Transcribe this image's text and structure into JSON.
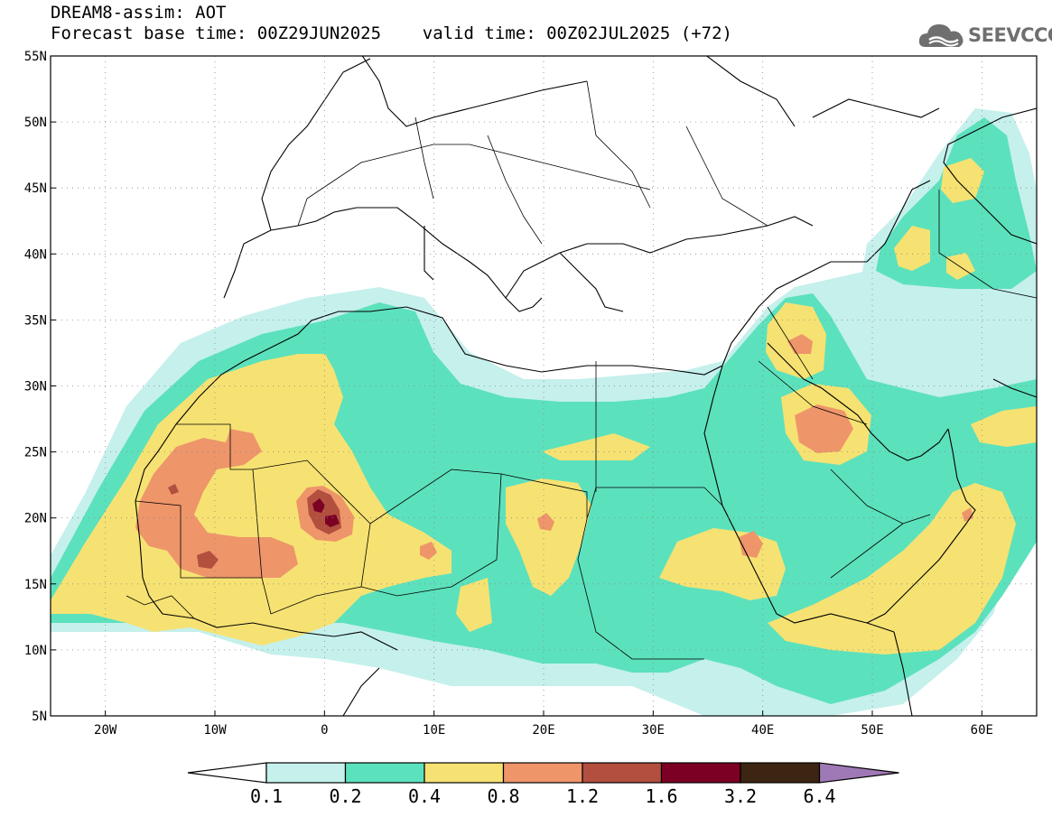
{
  "title": {
    "line1": "DREAM8-assim: AOT",
    "line2": "Forecast base time: 00Z29JUN2025    valid time: 00Z02JUL2025 (+72)"
  },
  "logo": {
    "text": "SEEVCCC",
    "icon": "cloud-icon"
  },
  "map": {
    "lat_labels": [
      "5N",
      "10N",
      "15N",
      "20N",
      "25N",
      "30N",
      "35N",
      "40N",
      "45N",
      "50N",
      "55N"
    ],
    "lon_labels": [
      "20W",
      "10W",
      "0",
      "10E",
      "20E",
      "30E",
      "40E",
      "50E",
      "60E"
    ],
    "grid": "dotted",
    "land_color": "#ffffff"
  },
  "legend": {
    "colors": [
      "#c5f0ec",
      "#5ce1bd",
      "#f6e272",
      "#ee956a",
      "#b34f3f",
      "#7c0023",
      "#3d2513",
      "#9f79b6"
    ],
    "under_color": "#ffffff",
    "labels": [
      "0.1",
      "0.2",
      "0.4",
      "0.8",
      "1.2",
      "1.6",
      "3.2",
      "6.4"
    ]
  }
}
